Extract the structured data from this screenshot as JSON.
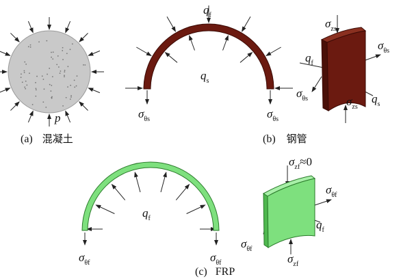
{
  "panels": [
    {
      "tag": "(a)",
      "name": "混凝土",
      "labels": [
        {
          "main": "p"
        }
      ]
    },
    {
      "tag": "(b)",
      "name": "钢管",
      "labels": [
        {
          "main": "q",
          "sub": "f"
        },
        {
          "main": "q",
          "sub": "s"
        },
        {
          "main": "σ",
          "sub": "θs"
        },
        {
          "main": "σ",
          "sub": "θs"
        },
        {
          "main": "σ",
          "sub": "zs"
        },
        {
          "main": "σ",
          "sub": "θs"
        },
        {
          "main": "q",
          "sub": "f"
        },
        {
          "main": "q",
          "sub": "s"
        },
        {
          "main": "σ",
          "sub": "θs"
        },
        {
          "main": "σ",
          "sub": "zs"
        }
      ]
    },
    {
      "tag": "(c)",
      "name": "FRP",
      "labels": [
        {
          "main": "q",
          "sub": "f"
        },
        {
          "main": "σ",
          "sub": "θf"
        },
        {
          "main": "σ",
          "sub": "θf"
        },
        {
          "main": "σ",
          "sub": "zf",
          "tail": "≈0"
        },
        {
          "main": "σ",
          "sub": "θf"
        },
        {
          "main": "q",
          "sub": "f"
        },
        {
          "main": "σ",
          "sub": "θf"
        },
        {
          "main": "σ",
          "sub": "zf"
        }
      ]
    }
  ]
}
